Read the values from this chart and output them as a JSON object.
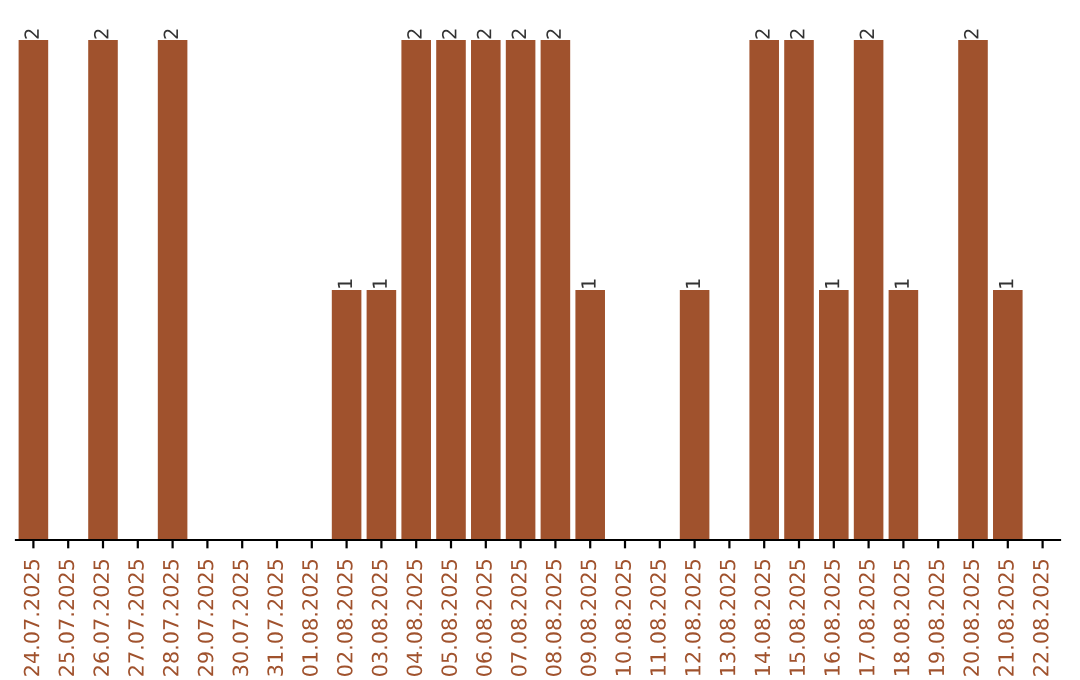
{
  "chart_data": {
    "type": "bar",
    "categories": [
      "24.07.2025",
      "25.07.2025",
      "26.07.2025",
      "27.07.2025",
      "28.07.2025",
      "29.07.2025",
      "30.07.2025",
      "31.07.2025",
      "01.08.2025",
      "02.08.2025",
      "03.08.2025",
      "04.08.2025",
      "05.08.2025",
      "06.08.2025",
      "07.08.2025",
      "08.08.2025",
      "09.08.2025",
      "10.08.2025",
      "11.08.2025",
      "12.08.2025",
      "13.08.2025",
      "14.08.2025",
      "15.08.2025",
      "16.08.2025",
      "17.08.2025",
      "18.08.2025",
      "19.08.2025",
      "20.08.2025",
      "21.08.2025",
      "22.08.2025"
    ],
    "values": [
      2,
      null,
      2,
      null,
      2,
      null,
      null,
      null,
      null,
      1,
      1,
      2,
      2,
      2,
      2,
      2,
      1,
      null,
      null,
      1,
      null,
      2,
      2,
      1,
      2,
      1,
      null,
      2,
      1,
      null
    ],
    "color": "#a0522d",
    "data_labels": true,
    "tick_labels": "x",
    "grid": false
  }
}
